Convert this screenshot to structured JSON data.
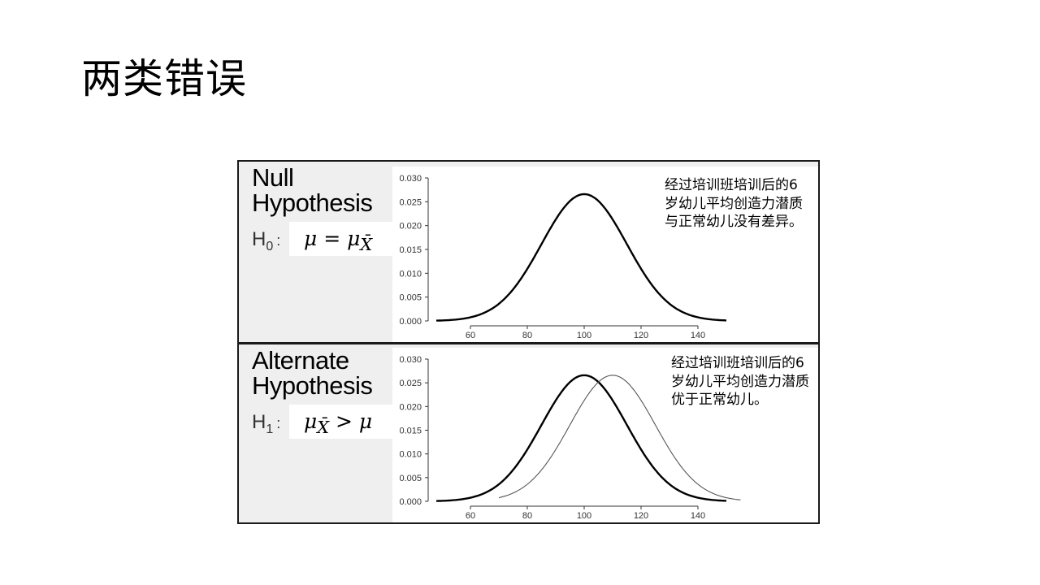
{
  "slide": {
    "title": "两类错误"
  },
  "panels": [
    {
      "id": "null",
      "title": "Null\nHypothesis",
      "h_label": "H",
      "h_sub": "0",
      "h_colon": ":",
      "formula": "μ = μ",
      "formula_sub": "X̄",
      "note": "经过培训班培训后的6岁幼儿平均创造力潜质与正常幼儿没有差异。"
    },
    {
      "id": "alternate",
      "title": "Alternate\nHypothesis",
      "h_label": "H",
      "h_sub": "1",
      "h_colon": ":",
      "formula": "μ",
      "formula_sub": "X̄",
      "formula_tail": " > μ",
      "note": "经过培训班培训后的6岁幼儿平均创造力潜质优于正常幼儿。"
    }
  ],
  "chart_data": [
    {
      "type": "line",
      "xlim": [
        40,
        150
      ],
      "ylim": [
        0,
        0.03
      ],
      "xticks": [
        60,
        80,
        100,
        120,
        140
      ],
      "yticks": [
        "0.000",
        "0.005",
        "0.010",
        "0.015",
        "0.020",
        "0.025",
        "0.030"
      ],
      "series": [
        {
          "kind": "normal",
          "mean": 100,
          "sd": 15,
          "x_range": [
            48,
            150
          ],
          "color": "#000000",
          "width": 2.4
        }
      ]
    },
    {
      "type": "line",
      "xlim": [
        40,
        150
      ],
      "ylim": [
        0,
        0.03
      ],
      "xticks": [
        60,
        80,
        100,
        120,
        140
      ],
      "yticks": [
        "0.000",
        "0.005",
        "0.010",
        "0.015",
        "0.020",
        "0.025",
        "0.030"
      ],
      "series": [
        {
          "kind": "normal",
          "mean": 100,
          "sd": 15,
          "x_range": [
            48,
            150
          ],
          "color": "#000000",
          "width": 2.4
        },
        {
          "kind": "normal",
          "mean": 110,
          "sd": 15,
          "x_range": [
            70,
            155
          ],
          "color": "#555555",
          "width": 1.1
        }
      ]
    }
  ]
}
